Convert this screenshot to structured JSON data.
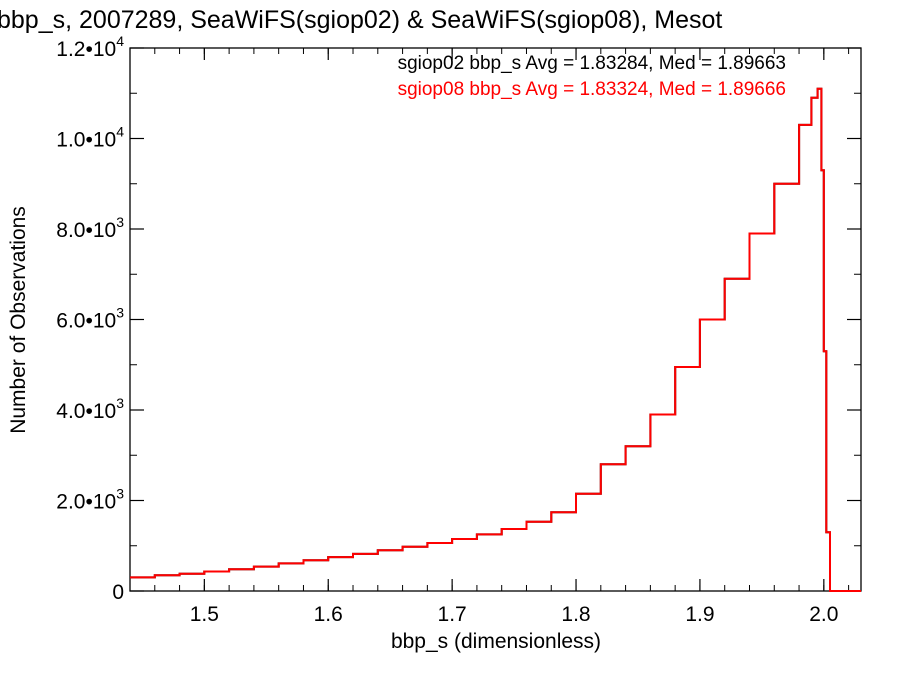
{
  "chart_data": {
    "type": "line",
    "title": "bbp_s, 2007289, SeaWiFS(sgiop02) & SeaWiFS(sgiop08), Mesot",
    "xlabel": "bbp_s (dimensionless)",
    "ylabel": "Number of Observations",
    "xlim": [
      1.44,
      2.03
    ],
    "ylim": [
      0,
      12000
    ],
    "x_ticks": [
      {
        "value": 1.5,
        "label": "1.5"
      },
      {
        "value": 1.6,
        "label": "1.6"
      },
      {
        "value": 1.7,
        "label": "1.7"
      },
      {
        "value": 1.8,
        "label": "1.8"
      },
      {
        "value": 1.9,
        "label": "1.9"
      },
      {
        "value": 2.0,
        "label": "2.0"
      }
    ],
    "y_ticks": [
      {
        "value": 0,
        "mantissa": "0",
        "exponent": ""
      },
      {
        "value": 2000,
        "mantissa": "2.0•10",
        "exponent": "3"
      },
      {
        "value": 4000,
        "mantissa": "4.0•10",
        "exponent": "3"
      },
      {
        "value": 6000,
        "mantissa": "6.0•10",
        "exponent": "3"
      },
      {
        "value": 8000,
        "mantissa": "8.0•10",
        "exponent": "3"
      },
      {
        "value": 10000,
        "mantissa": "1.0•10",
        "exponent": "4"
      },
      {
        "value": 12000,
        "mantissa": "1.2•10",
        "exponent": "4"
      }
    ],
    "grid": false,
    "legend_position": "top-right",
    "annotations": [
      {
        "text": "sgiop02 bbp_s Avg = 1.83284, Med = 1.89663",
        "color": "#000000"
      },
      {
        "text": "sgiop08 bbp_s Avg = 1.83324, Med = 1.89666",
        "color": "#ff0000"
      }
    ],
    "series": [
      {
        "color": "#000000",
        "x": [
          1.44,
          1.46,
          1.48,
          1.5,
          1.52,
          1.54,
          1.56,
          1.58,
          1.6,
          1.62,
          1.64,
          1.66,
          1.68,
          1.7,
          1.72,
          1.74,
          1.76,
          1.78,
          1.8,
          1.82,
          1.84,
          1.86,
          1.88,
          1.9,
          1.92,
          1.94,
          1.96,
          1.98,
          1.99,
          1.995,
          1.998,
          2.0,
          2.002,
          2.005,
          2.03
        ],
        "y": [
          300,
          350,
          380,
          430,
          480,
          540,
          610,
          680,
          750,
          820,
          900,
          980,
          1060,
          1150,
          1250,
          1370,
          1530,
          1740,
          2150,
          2800,
          3200,
          3900,
          4950,
          6000,
          6900,
          7900,
          9000,
          10300,
          10900,
          11100,
          9300,
          5300,
          1300,
          0,
          0
        ]
      },
      {
        "color": "#ff0000",
        "x": [
          1.44,
          1.46,
          1.48,
          1.5,
          1.52,
          1.54,
          1.56,
          1.58,
          1.6,
          1.62,
          1.64,
          1.66,
          1.68,
          1.7,
          1.72,
          1.74,
          1.76,
          1.78,
          1.8,
          1.82,
          1.84,
          1.86,
          1.88,
          1.9,
          1.92,
          1.94,
          1.96,
          1.98,
          1.99,
          1.995,
          1.998,
          2.0,
          2.002,
          2.005,
          2.03
        ],
        "y": [
          300,
          350,
          380,
          430,
          480,
          540,
          610,
          680,
          750,
          820,
          900,
          980,
          1060,
          1150,
          1250,
          1370,
          1530,
          1740,
          2150,
          2800,
          3200,
          3900,
          4950,
          6000,
          6900,
          7900,
          9000,
          10300,
          10900,
          11100,
          9300,
          5300,
          1300,
          0,
          0
        ]
      }
    ]
  }
}
